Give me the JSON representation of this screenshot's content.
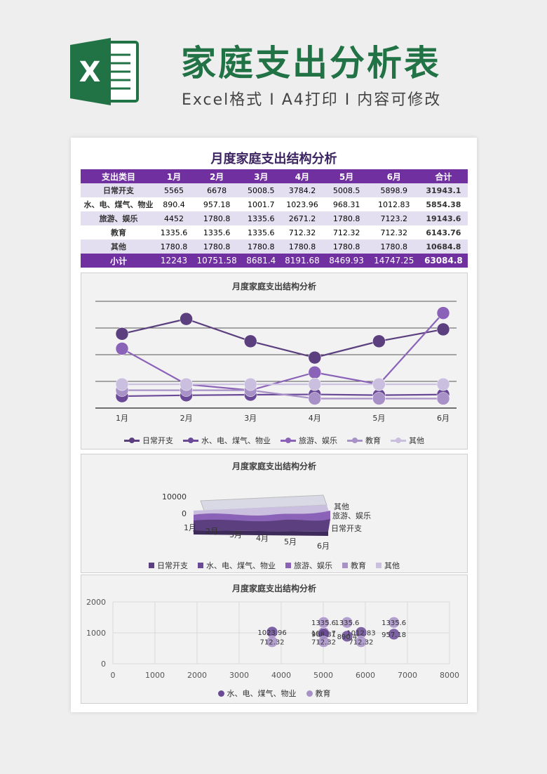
{
  "header": {
    "logo_letter": "X",
    "title": "家庭支出分析表",
    "subtitle": "Excel格式 I A4打印 I 内容可修改"
  },
  "doc": {
    "title": "月度家庭支出结构分析"
  },
  "table": {
    "headers": [
      "支出类目",
      "1月",
      "2月",
      "3月",
      "4月",
      "5月",
      "6月",
      "合计"
    ],
    "rows": [
      {
        "cat": "日常开支",
        "values": [
          "5565",
          "6678",
          "5008.5",
          "3784.2",
          "5008.5",
          "5898.9"
        ],
        "total": "31943.1"
      },
      {
        "cat": "水、电、煤气、物业",
        "values": [
          "890.4",
          "957.18",
          "1001.7",
          "1023.96",
          "968.31",
          "1012.83"
        ],
        "total": "5854.38"
      },
      {
        "cat": "旅游、娱乐",
        "values": [
          "4452",
          "1780.8",
          "1335.6",
          "2671.2",
          "1780.8",
          "7123.2"
        ],
        "total": "19143.6"
      },
      {
        "cat": "教育",
        "values": [
          "1335.6",
          "1335.6",
          "1335.6",
          "712.32",
          "712.32",
          "712.32"
        ],
        "total": "6143.76"
      },
      {
        "cat": "其他",
        "values": [
          "1780.8",
          "1780.8",
          "1780.8",
          "1780.8",
          "1780.8",
          "1780.8"
        ],
        "total": "10684.8"
      }
    ],
    "sum_row": {
      "cat": "小计",
      "values": [
        "12243",
        "10751.58",
        "8681.4",
        "8191.68",
        "8469.93",
        "14747.25"
      ],
      "total": "63084.8"
    }
  },
  "colors": {
    "brand_green": "#217346",
    "purple": "#7030a0",
    "series": [
      "#5b3f7e",
      "#6a4a96",
      "#8a63b8",
      "#a891c7",
      "#cbbfdf"
    ]
  },
  "chart_data": [
    {
      "type": "line",
      "title": "月度家庭支出结构分析",
      "categories": [
        "1月",
        "2月",
        "3月",
        "4月",
        "5月",
        "6月"
      ],
      "series": [
        {
          "name": "日常开支",
          "values": [
            5565,
            6678,
            5008.5,
            3784.2,
            5008.5,
            5898.9
          ]
        },
        {
          "name": "水、电、煤气、物业",
          "values": [
            890.4,
            957.18,
            1001.7,
            1023.96,
            968.31,
            1012.83
          ]
        },
        {
          "name": "旅游、娱乐",
          "values": [
            4452,
            1780.8,
            1335.6,
            2671.2,
            1780.8,
            7123.2
          ]
        },
        {
          "name": "教育",
          "values": [
            1335.6,
            1335.6,
            1335.6,
            712.32,
            712.32,
            712.32
          ]
        },
        {
          "name": "其他",
          "values": [
            1780.8,
            1780.8,
            1780.8,
            1780.8,
            1780.8,
            1780.8
          ]
        }
      ],
      "ylim": [
        0,
        8000
      ],
      "grid": true,
      "legend": "bottom"
    },
    {
      "type": "area",
      "title": "月度家庭支出结构分析",
      "categories": [
        "1月",
        "2月",
        "3月",
        "4月",
        "5月",
        "6月"
      ],
      "y_ticks": [
        "0",
        "10000"
      ],
      "depth_labels": [
        "其他",
        "旅游、娱乐",
        "日常开支"
      ],
      "legend_entries": [
        "日常开支",
        "水、电、煤气、物业",
        "旅游、娱乐",
        "教育",
        "其他"
      ],
      "legend": "bottom"
    },
    {
      "type": "scatter",
      "title": "月度家庭支出结构分析",
      "x_ticks": [
        "0",
        "1000",
        "2000",
        "3000",
        "4000",
        "5000",
        "6000",
        "7000",
        "8000"
      ],
      "y_ticks": [
        "0",
        "1000",
        "2000"
      ],
      "xlim": [
        0,
        8000
      ],
      "ylim": [
        0,
        2000
      ],
      "series": [
        {
          "name": "水、电、煤气、物业",
          "points": [
            {
              "x": 5565,
              "y": 890.4
            },
            {
              "x": 6678,
              "y": 957.18
            },
            {
              "x": 5008.5,
              "y": 1001.7
            },
            {
              "x": 3784.2,
              "y": 1023.96
            },
            {
              "x": 5008.5,
              "y": 968.31
            },
            {
              "x": 5898.9,
              "y": 1012.83
            }
          ]
        },
        {
          "name": "教育",
          "points": [
            {
              "x": 5565,
              "y": 1335.6
            },
            {
              "x": 6678,
              "y": 1335.6
            },
            {
              "x": 5008.5,
              "y": 1335.6
            },
            {
              "x": 3784.2,
              "y": 712.32
            },
            {
              "x": 5008.5,
              "y": 712.32
            },
            {
              "x": 5898.9,
              "y": 712.32
            }
          ]
        }
      ],
      "legend": "bottom"
    }
  ]
}
